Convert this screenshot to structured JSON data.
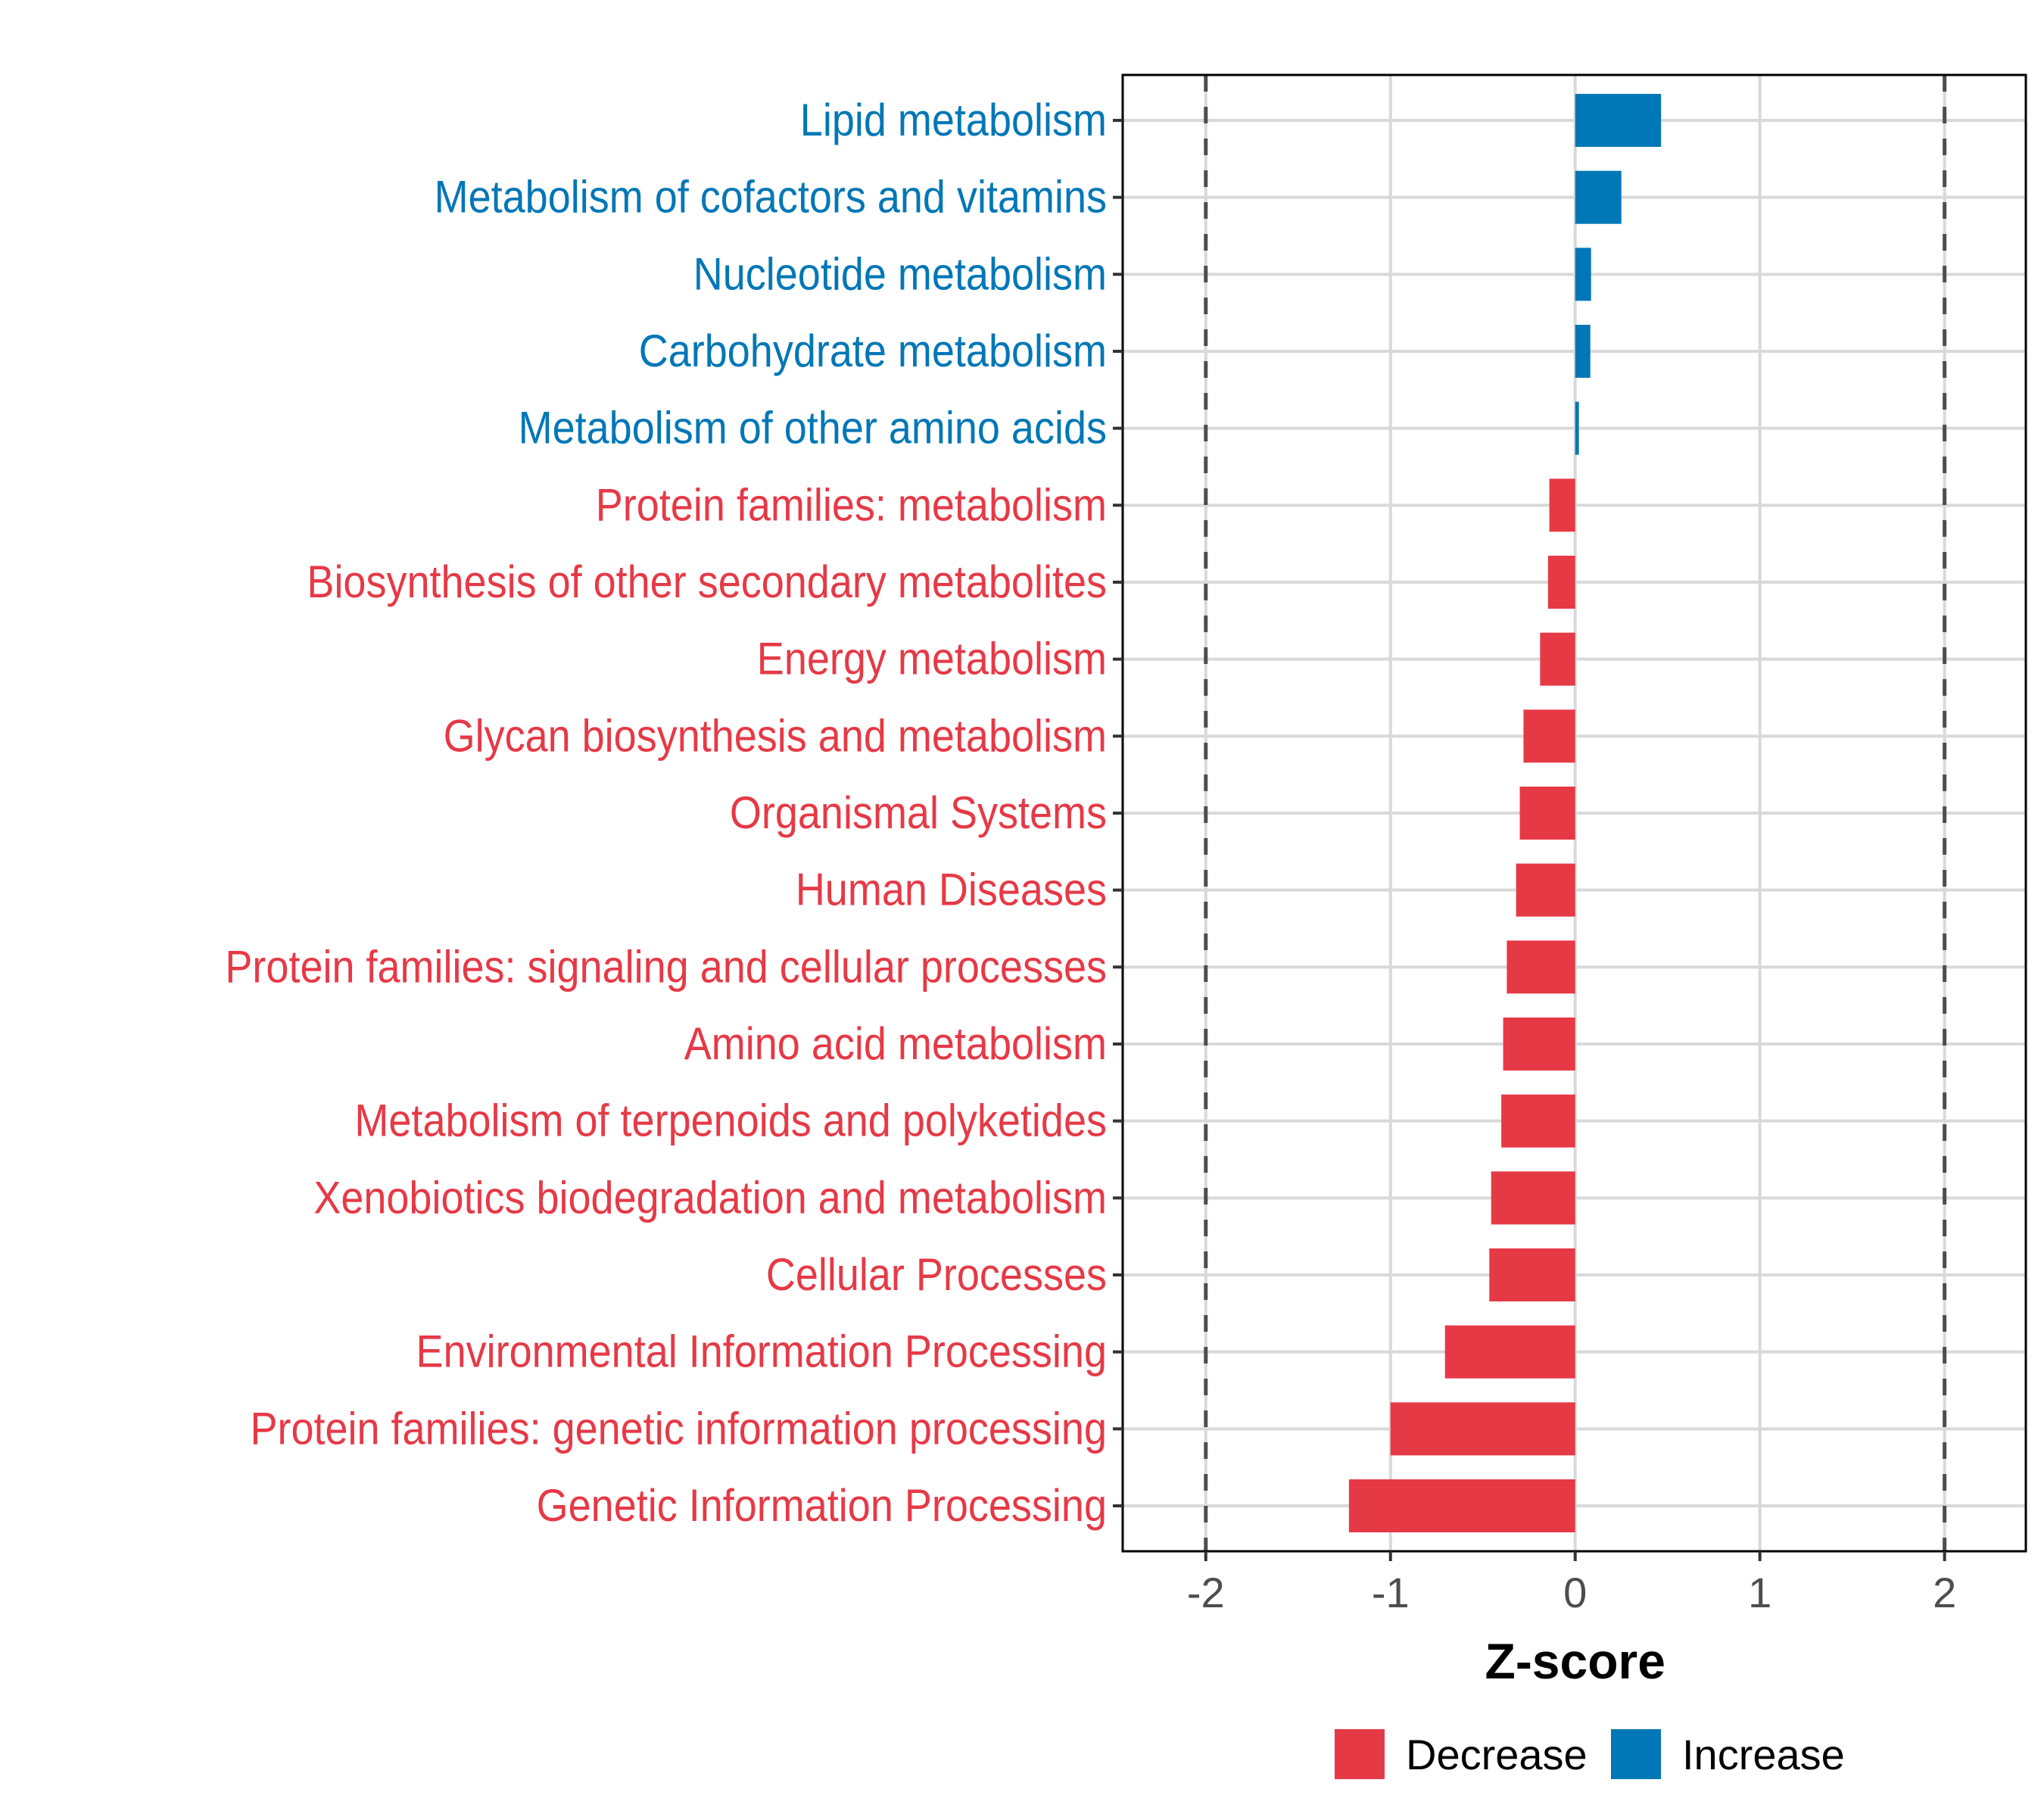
{
  "chart_data": {
    "type": "bar",
    "orientation": "horizontal",
    "title": "",
    "xlabel": "Z-score",
    "ylabel": "",
    "xlim": [
      -2.45,
      2.44
    ],
    "xticks": [
      -2,
      -1,
      0,
      1,
      2
    ],
    "xtick_labels": [
      "-2",
      "-1",
      "0",
      "1",
      "2"
    ],
    "reference_lines": [
      -2,
      2
    ],
    "grid": true,
    "legend_position": "bottom",
    "categories": [
      "Lipid metabolism",
      "Metabolism of cofactors and vitamins",
      "Nucleotide metabolism",
      "Carbohydrate metabolism",
      "Metabolism of other amino acids",
      "Protein families: metabolism",
      "Biosynthesis of other secondary metabolites",
      "Energy metabolism",
      "Glycan biosynthesis and metabolism",
      "Organismal Systems",
      "Human Diseases",
      "Protein families: signaling and cellular processes",
      "Amino acid metabolism",
      "Metabolism of terpenoids and polyketides",
      "Xenobiotics biodegradation and metabolism",
      "Cellular Processes",
      "Environmental Information Processing",
      "Protein families: genetic information processing",
      "Genetic Information Processing"
    ],
    "values": [
      0.465,
      0.25,
      0.086,
      0.082,
      0.02,
      -0.14,
      -0.147,
      -0.19,
      -0.28,
      -0.3,
      -0.32,
      -0.37,
      -0.39,
      -0.4,
      -0.455,
      -0.465,
      -0.705,
      -1.0,
      -1.225
    ],
    "groups": [
      "Increase",
      "Increase",
      "Increase",
      "Increase",
      "Increase",
      "Decrease",
      "Decrease",
      "Decrease",
      "Decrease",
      "Decrease",
      "Decrease",
      "Decrease",
      "Decrease",
      "Decrease",
      "Decrease",
      "Decrease",
      "Decrease",
      "Decrease",
      "Decrease"
    ],
    "legend": [
      {
        "label": "Decrease",
        "color": "#E63946"
      },
      {
        "label": "Increase",
        "color": "#0077B6"
      }
    ]
  },
  "colors": {
    "Decrease": "#E63946",
    "Increase": "#0077B6",
    "grid": "#d9d9d9",
    "refline": "#4d4d4d",
    "axis": "#000000",
    "tick_text": "#4d4d4d"
  }
}
